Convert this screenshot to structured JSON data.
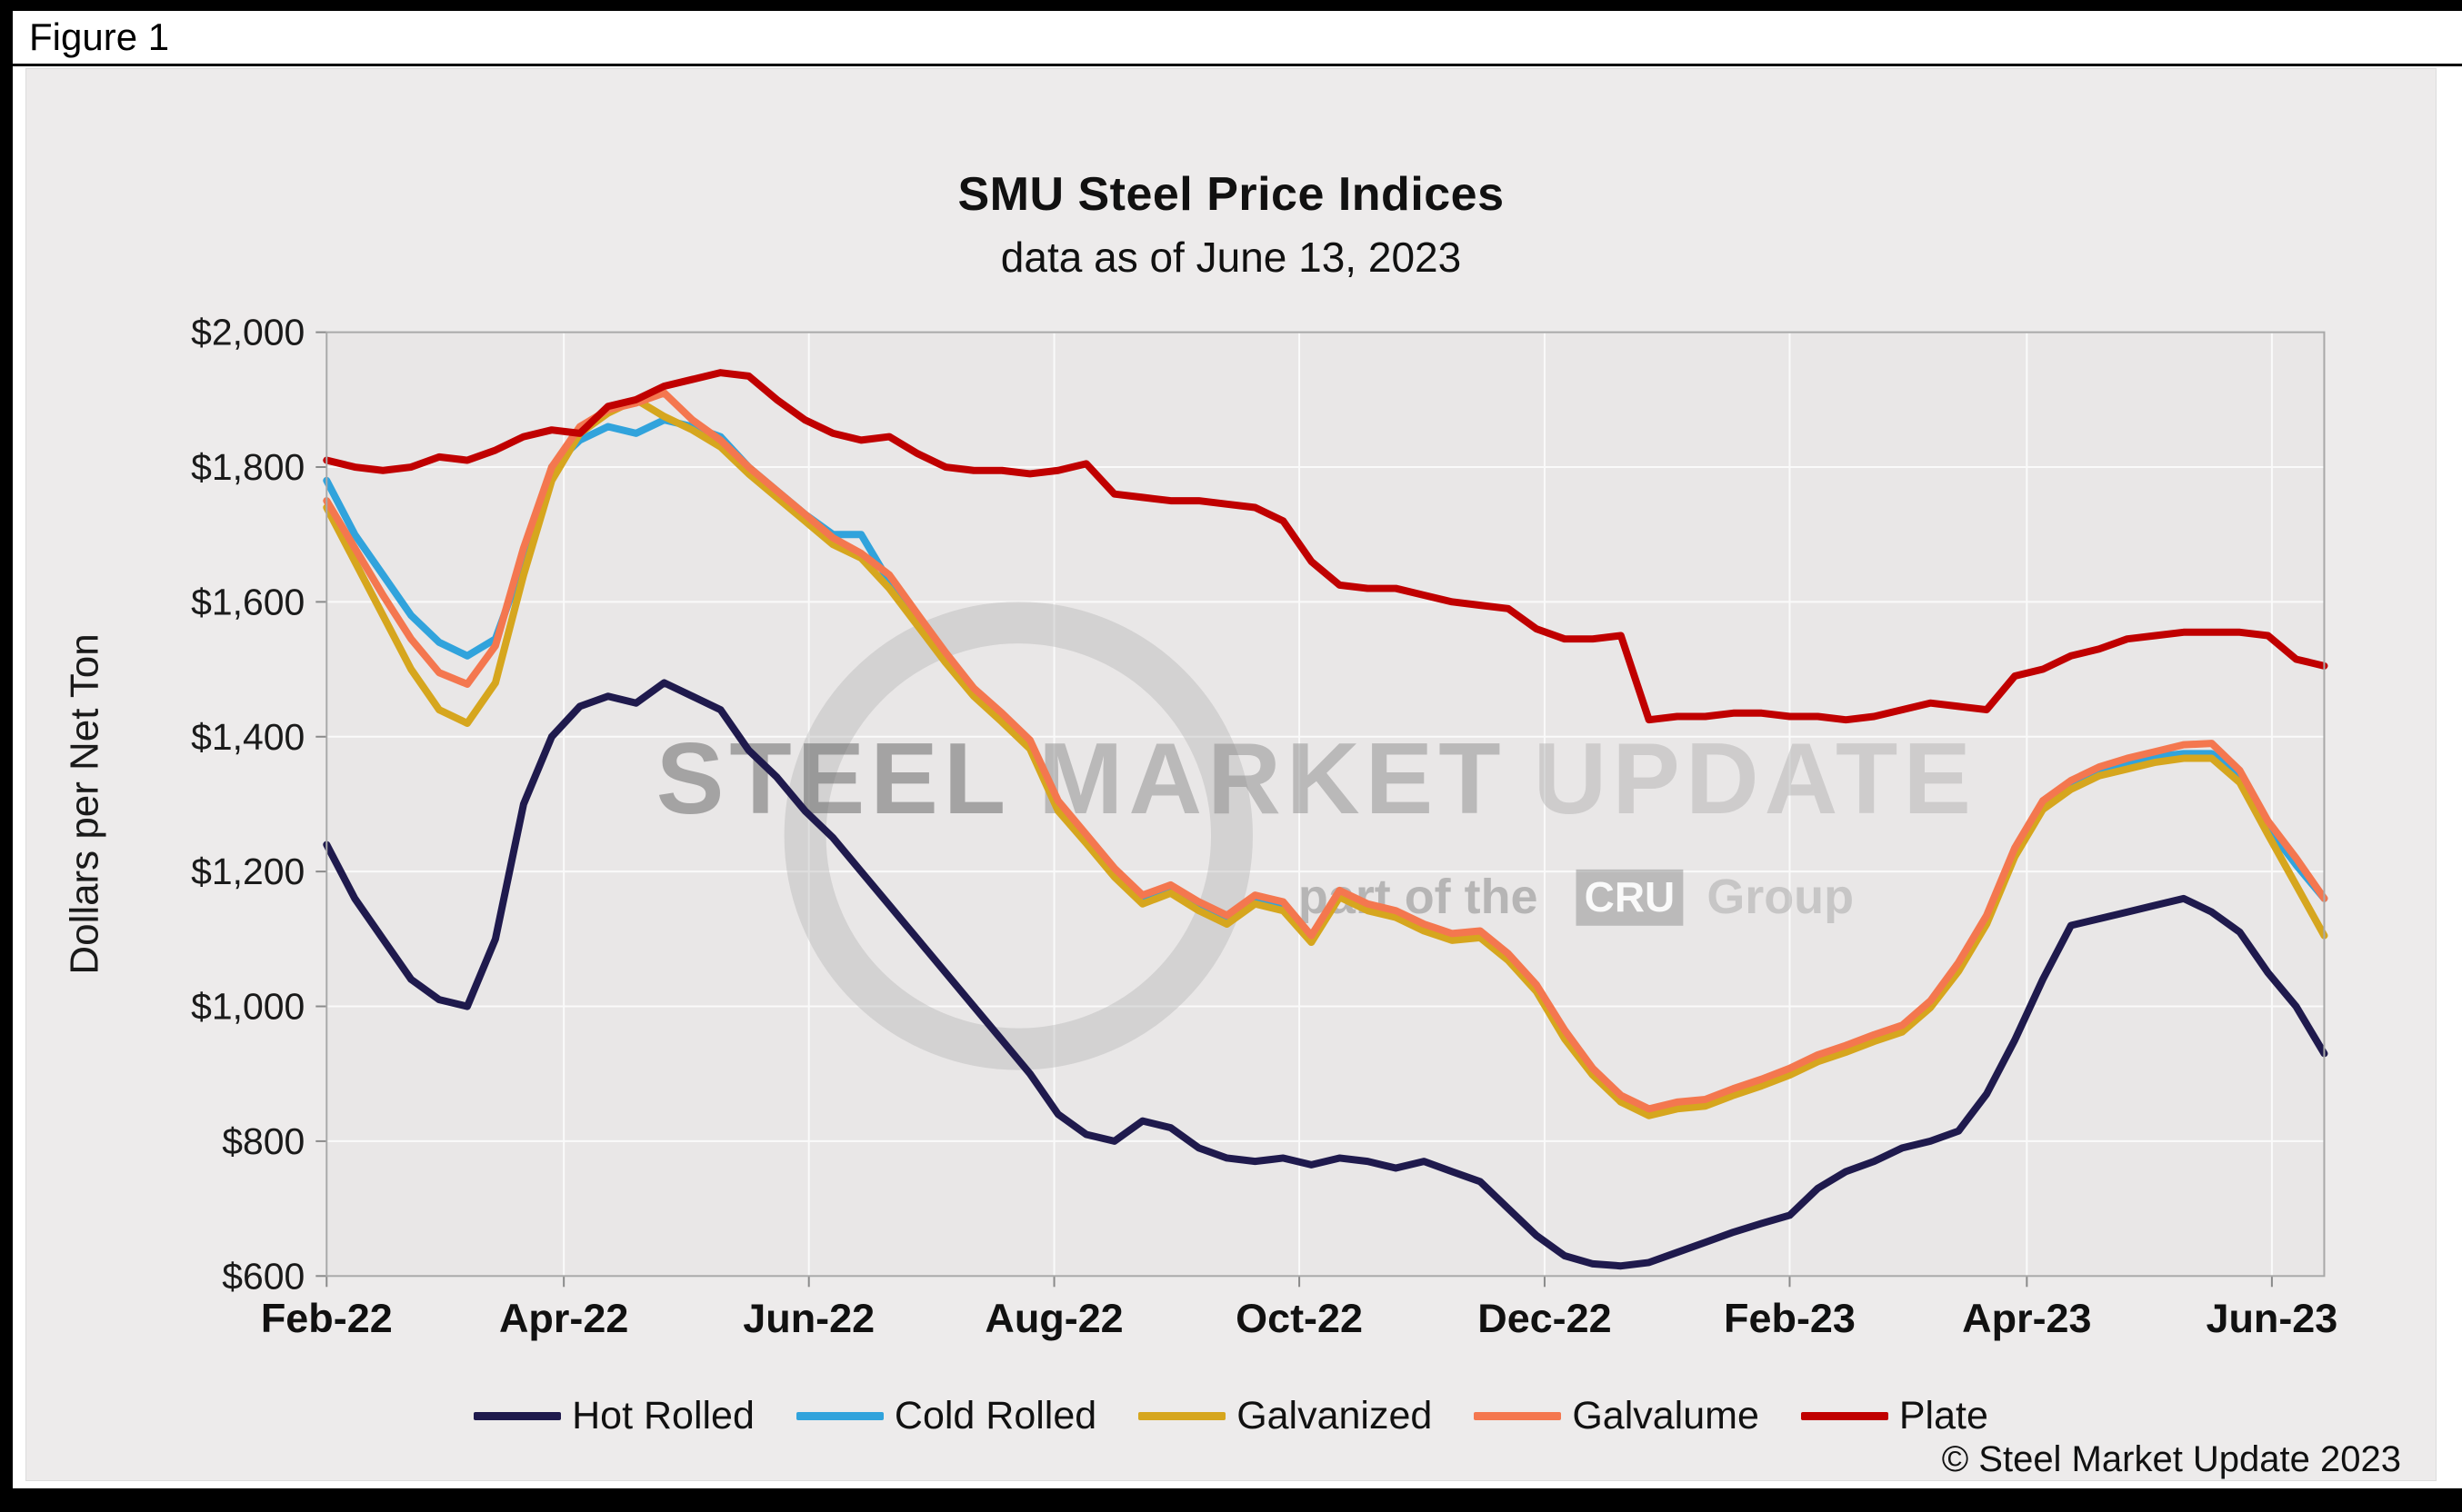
{
  "figure_label": "Figure 1",
  "copyright": "© Steel Market Update 2023",
  "watermark": {
    "word1": "STEEL",
    "word2": "MARKET",
    "word3": "UPDATE",
    "tagline_prefix": "part of the",
    "tagline_box": "CRU",
    "tagline_suffix": "Group"
  },
  "chart_data": {
    "type": "line",
    "title": "SMU Steel Price Indices",
    "subtitle": "data as of June 13, 2023",
    "legend_position": "bottom",
    "grid": true,
    "y_axis": {
      "label": "Dollars per Net Ton",
      "min": 600,
      "max": 2000,
      "step": 200,
      "ticks": [
        {
          "label": "$600",
          "value": 600
        },
        {
          "label": "$800",
          "value": 800
        },
        {
          "label": "$1,000",
          "value": 1000
        },
        {
          "label": "$1,200",
          "value": 1200
        },
        {
          "label": "$1,400",
          "value": 1400
        },
        {
          "label": "$1,600",
          "value": 1600
        },
        {
          "label": "$1,800",
          "value": 1800
        },
        {
          "label": "$2,000",
          "value": 2000
        }
      ]
    },
    "x_axis": {
      "unit": "weeks from Feb-22",
      "week_span": 71,
      "ticks": [
        {
          "label": "Feb-22",
          "week": 0
        },
        {
          "label": "Apr-22",
          "week": 8.43
        },
        {
          "label": "Jun-22",
          "week": 17.14
        },
        {
          "label": "Aug-22",
          "week": 25.86
        },
        {
          "label": "Oct-22",
          "week": 34.57
        },
        {
          "label": "Dec-22",
          "week": 43.29
        },
        {
          "label": "Feb-23",
          "week": 52
        },
        {
          "label": "Apr-23",
          "week": 60.43
        },
        {
          "label": "Jun-23",
          "week": 69.14
        }
      ]
    },
    "series": [
      {
        "name": "Hot Rolled",
        "color": "#1F1A4D",
        "values": [
          1240,
          1160,
          1100,
          1040,
          1010,
          1000,
          1100,
          1300,
          1400,
          1445,
          1460,
          1450,
          1480,
          1460,
          1440,
          1380,
          1340,
          1290,
          1250,
          1200,
          1150,
          1100,
          1050,
          1000,
          950,
          900,
          840,
          810,
          800,
          830,
          820,
          790,
          775,
          770,
          775,
          765,
          775,
          770,
          760,
          770,
          755,
          740,
          700,
          660,
          630,
          618,
          615,
          620,
          635,
          650,
          665,
          678,
          690,
          730,
          755,
          770,
          790,
          800,
          815,
          870,
          950,
          1040,
          1120,
          1130,
          1140,
          1150,
          1160,
          1140,
          1110,
          1050,
          1000,
          930
        ]
      },
      {
        "name": "Cold Rolled",
        "color": "#31A3DC",
        "values": [
          1780,
          1700,
          1640,
          1580,
          1540,
          1520,
          1545,
          1660,
          1800,
          1840,
          1860,
          1850,
          1870,
          1860,
          1845,
          1800,
          1765,
          1730,
          1700,
          1700,
          1630,
          1570,
          1515,
          1465,
          1430,
          1390,
          1300,
          1250,
          1200,
          1160,
          1175,
          1150,
          1130,
          1160,
          1150,
          1100,
          1170,
          1150,
          1140,
          1120,
          1105,
          1110,
          1075,
          1030,
          960,
          905,
          865,
          845,
          855,
          860,
          875,
          890,
          905,
          925,
          940,
          955,
          970,
          1005,
          1060,
          1130,
          1230,
          1300,
          1330,
          1350,
          1360,
          1370,
          1375,
          1375,
          1340,
          1265,
          1210,
          1160
        ]
      },
      {
        "name": "Galvanized",
        "color": "#D6A61E",
        "values": [
          1740,
          1660,
          1580,
          1500,
          1440,
          1420,
          1480,
          1640,
          1780,
          1850,
          1880,
          1900,
          1875,
          1855,
          1830,
          1790,
          1755,
          1720,
          1685,
          1665,
          1620,
          1565,
          1510,
          1460,
          1422,
          1382,
          1290,
          1242,
          1192,
          1152,
          1168,
          1142,
          1122,
          1152,
          1142,
          1095,
          1162,
          1142,
          1132,
          1112,
          1098,
          1102,
          1068,
          1022,
          952,
          898,
          858,
          838,
          848,
          852,
          868,
          882,
          898,
          918,
          932,
          948,
          962,
          998,
          1052,
          1122,
          1222,
          1292,
          1322,
          1342,
          1352,
          1362,
          1368,
          1368,
          1332,
          1255,
          1180,
          1105
        ]
      },
      {
        "name": "Galvalume",
        "color": "#F4774F",
        "values": [
          1750,
          1680,
          1610,
          1545,
          1495,
          1478,
          1535,
          1680,
          1800,
          1860,
          1885,
          1895,
          1910,
          1870,
          1840,
          1800,
          1765,
          1730,
          1695,
          1672,
          1640,
          1582,
          1525,
          1472,
          1435,
          1395,
          1305,
          1255,
          1205,
          1165,
          1180,
          1155,
          1135,
          1165,
          1155,
          1105,
          1172,
          1152,
          1142,
          1122,
          1108,
          1112,
          1078,
          1032,
          965,
          908,
          868,
          848,
          858,
          862,
          878,
          892,
          908,
          928,
          942,
          958,
          972,
          1008,
          1065,
          1135,
          1235,
          1305,
          1335,
          1355,
          1368,
          1378,
          1388,
          1390,
          1350,
          1275,
          1220,
          1160
        ]
      },
      {
        "name": "Plate",
        "color": "#C00000",
        "values": [
          1810,
          1800,
          1795,
          1800,
          1815,
          1810,
          1825,
          1845,
          1855,
          1850,
          1890,
          1900,
          1920,
          1930,
          1940,
          1935,
          1900,
          1870,
          1850,
          1840,
          1845,
          1820,
          1800,
          1795,
          1795,
          1790,
          1795,
          1805,
          1760,
          1755,
          1750,
          1750,
          1745,
          1740,
          1720,
          1660,
          1625,
          1620,
          1620,
          1610,
          1600,
          1595,
          1590,
          1560,
          1545,
          1545,
          1550,
          1425,
          1430,
          1430,
          1435,
          1435,
          1430,
          1430,
          1425,
          1430,
          1440,
          1450,
          1445,
          1440,
          1490,
          1500,
          1520,
          1530,
          1545,
          1550,
          1555,
          1555,
          1555,
          1550,
          1515,
          1505
        ]
      }
    ]
  }
}
